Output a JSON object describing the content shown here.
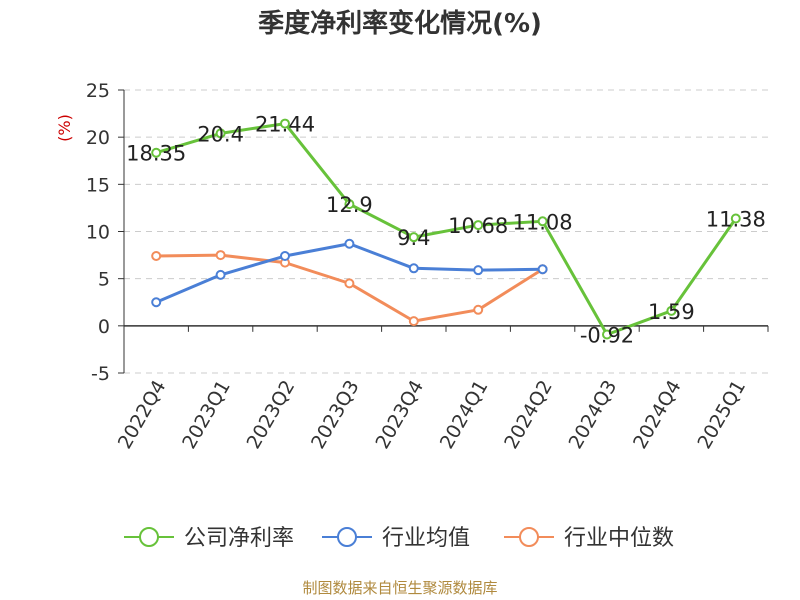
{
  "chart_data": {
    "type": "line",
    "title": "季度净利率变化情况(%)",
    "ylabel": "(%)",
    "xlabel": "",
    "categories": [
      "2022Q4",
      "2023Q1",
      "2023Q2",
      "2023Q3",
      "2023Q4",
      "2024Q1",
      "2024Q2",
      "2024Q3",
      "2024Q4",
      "2025Q1"
    ],
    "ylim": [
      -5,
      25
    ],
    "yticks": [
      -5,
      0,
      5,
      10,
      15,
      20,
      25
    ],
    "ytick_labels": [
      "-5",
      "0",
      "5",
      "10",
      "15",
      "20",
      "25"
    ],
    "grid": "horizontal dashed",
    "legend_position": "bottom",
    "series": [
      {
        "name": "公司净利率",
        "color": "#67c23a",
        "values": [
          18.35,
          20.4,
          21.44,
          12.9,
          9.4,
          10.68,
          11.08,
          -0.92,
          1.59,
          11.38
        ],
        "labels": [
          "18.35",
          "20.4",
          "21.44",
          "12.9",
          "9.4",
          "10.68",
          "11.08",
          "-0.92",
          "1.59",
          "11.38"
        ]
      },
      {
        "name": "行业均值",
        "color": "#4a7fd6",
        "values": [
          2.5,
          5.4,
          7.4,
          8.7,
          6.1,
          5.9,
          6.0,
          null,
          null,
          null
        ]
      },
      {
        "name": "行业中位数",
        "color": "#f28c5a",
        "values": [
          7.4,
          7.5,
          6.7,
          4.5,
          0.5,
          1.7,
          6.0,
          null,
          null,
          null
        ]
      }
    ]
  },
  "source_text": "制图数据来自恒生聚源数据库"
}
